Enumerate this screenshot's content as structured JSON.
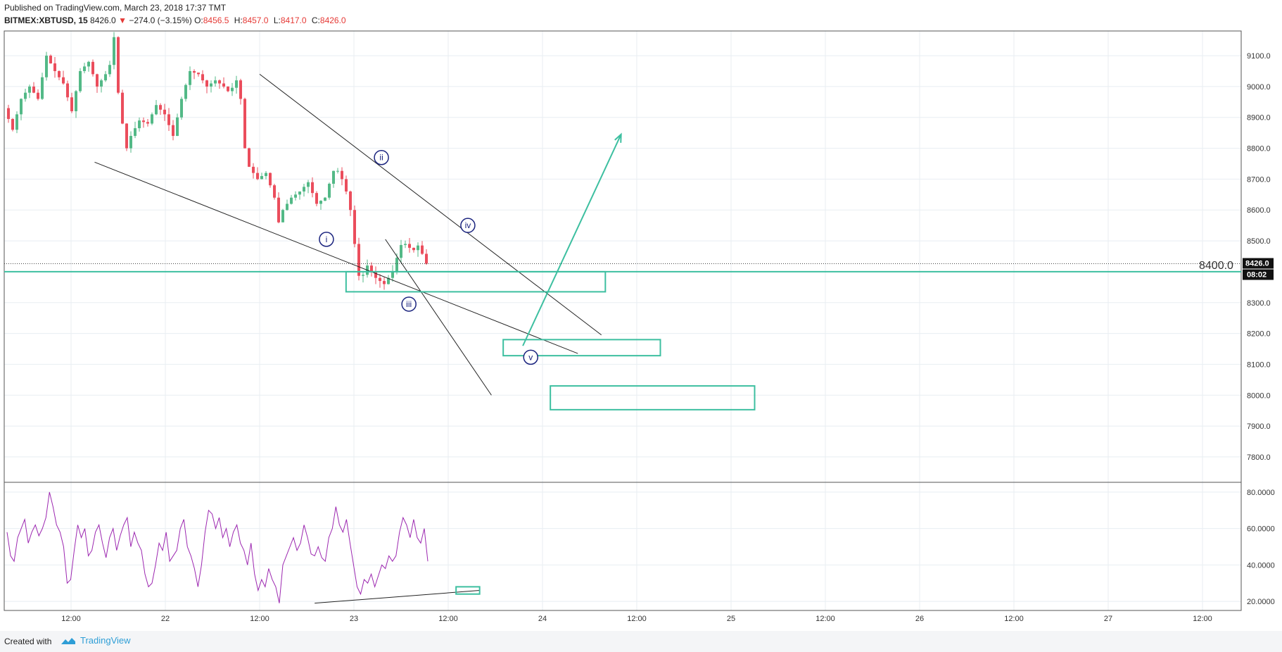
{
  "header": {
    "published": "Published on TradingView.com, March 23, 2018 17:37 TMT",
    "symbol": "BITMEX:XBTUSD, 15",
    "last": "8426.0",
    "change": "−274.0 (−3.15%)",
    "o_label": "O:",
    "o_value": "8456.5",
    "h_label": "H:",
    "h_value": "8457.0",
    "l_label": "L:",
    "l_value": "8417.0",
    "c_label": "C:",
    "c_value": "8426.0"
  },
  "footer": {
    "created": "Created with",
    "brand": "TradingView"
  },
  "colors": {
    "up": "#53b987",
    "down": "#eb4d5c",
    "teal": "#3dbfa0",
    "rsi": "#9c27b0",
    "wave_label": "#1a237e",
    "grid": "#e8eef2"
  },
  "chart_data": [
    {
      "type": "candlestick",
      "title": "BITMEX:XBTUSD, 15",
      "ylim": [
        7720,
        9180
      ],
      "y_ticks": [
        "9100.0",
        "9000.0",
        "8900.0",
        "8800.0",
        "8700.0",
        "8600.0",
        "8500.0",
        "8400.0",
        "8300.0",
        "8200.0",
        "8100.0",
        "8000.0",
        "7900.0",
        "7800.0"
      ],
      "x_ticks": [
        "12:00",
        "22",
        "12:00",
        "23",
        "12:00",
        "24",
        "12:00",
        "25",
        "12:00",
        "26",
        "12:00",
        "27",
        "12:00"
      ],
      "last_price_label": "8426.0",
      "countdown_label": "08:02",
      "horizontal_line": {
        "value": 8400,
        "label": "8400.0"
      },
      "price_path": [
        [
          0,
          8930
        ],
        [
          12,
          8860
        ],
        [
          24,
          8960
        ],
        [
          36,
          9000
        ],
        [
          48,
          8960
        ],
        [
          60,
          9100
        ],
        [
          72,
          9050
        ],
        [
          84,
          9010
        ],
        [
          96,
          8920
        ],
        [
          108,
          9050
        ],
        [
          120,
          9080
        ],
        [
          132,
          9000
        ],
        [
          144,
          9040
        ],
        [
          154,
          9090
        ],
        [
          156,
          9160
        ],
        [
          162,
          8980
        ],
        [
          168,
          8880
        ],
        [
          174,
          8800
        ],
        [
          180,
          8840
        ],
        [
          192,
          8890
        ],
        [
          204,
          8880
        ],
        [
          216,
          8940
        ],
        [
          228,
          8910
        ],
        [
          240,
          8840
        ],
        [
          252,
          8960
        ],
        [
          264,
          9050
        ],
        [
          276,
          9040
        ],
        [
          288,
          9000
        ],
        [
          300,
          9020
        ],
        [
          312,
          9000
        ],
        [
          320,
          8980
        ],
        [
          330,
          9020
        ],
        [
          336,
          8960
        ],
        [
          342,
          8800
        ],
        [
          348,
          8740
        ],
        [
          360,
          8700
        ],
        [
          372,
          8720
        ],
        [
          384,
          8640
        ],
        [
          390,
          8560
        ],
        [
          396,
          8600
        ],
        [
          408,
          8640
        ],
        [
          420,
          8660
        ],
        [
          432,
          8690
        ],
        [
          444,
          8620
        ],
        [
          456,
          8640
        ],
        [
          464,
          8700
        ],
        [
          470,
          8740
        ],
        [
          476,
          8720
        ],
        [
          484,
          8680
        ],
        [
          490,
          8620
        ],
        [
          496,
          8560
        ],
        [
          500,
          8420
        ],
        [
          506,
          8370
        ],
        [
          516,
          8420
        ],
        [
          528,
          8380
        ],
        [
          540,
          8360
        ],
        [
          552,
          8400
        ],
        [
          560,
          8460
        ],
        [
          566,
          8500
        ],
        [
          574,
          8480
        ],
        [
          582,
          8470
        ],
        [
          590,
          8490
        ],
        [
          598,
          8426
        ]
      ],
      "candle_step": 6,
      "trend_lines": [
        {
          "from": [
            "21 15:00",
            8755
          ],
          "to": [
            "24 04:30",
            8135
          ]
        },
        {
          "from": [
            "22 12:00",
            9040
          ],
          "to": [
            "24 07:30",
            8195
          ]
        },
        {
          "from": [
            "23 04:00",
            8505
          ],
          "to": [
            "23 17:30",
            8000
          ]
        }
      ],
      "zones": [
        {
          "x_from": "22 23:00",
          "x_to": "24 08:00",
          "y_top": 8400,
          "y_bottom": 8335
        },
        {
          "x_from": "23 19:00",
          "x_to": "24 15:00",
          "y_top": 8180,
          "y_bottom": 8128
        },
        {
          "x_from": "24 01:00",
          "x_to": "25 03:00",
          "y_top": 8030,
          "y_bottom": 7953
        }
      ],
      "projection_arrow": {
        "from": [
          "23 21:30",
          8160
        ],
        "to": [
          "24 10:00",
          8845
        ]
      },
      "wave_labels": [
        {
          "text": "i",
          "price": 8505
        },
        {
          "text": "ii",
          "price": 8770
        },
        {
          "text": "iii",
          "price": 8295
        },
        {
          "text": "iv",
          "price": 8550
        },
        {
          "text": "v",
          "price": 8123
        }
      ]
    },
    {
      "type": "line",
      "title": "",
      "ylim": [
        15,
        85
      ],
      "y_ticks": [
        "80.0000",
        "60.0000",
        "40.0000",
        "20.0000"
      ],
      "series": [
        {
          "values": [
            58,
            45,
            42,
            55,
            60,
            65,
            52,
            58,
            62,
            56,
            60,
            66,
            80,
            72,
            62,
            58,
            50,
            30,
            32,
            48,
            62,
            55,
            60,
            45,
            48,
            58,
            62,
            52,
            44,
            55,
            60,
            48,
            56,
            62,
            66,
            50,
            58,
            52,
            48,
            35,
            28,
            30,
            40,
            52,
            48,
            58,
            42,
            45,
            48,
            60,
            65,
            50,
            45,
            38,
            28,
            40,
            58,
            70,
            68,
            60,
            66,
            55,
            60,
            50,
            58,
            62,
            52,
            48,
            40,
            52,
            35,
            26,
            32,
            28,
            38,
            32,
            28,
            19,
            40,
            45,
            50,
            55,
            48,
            52,
            62,
            55,
            46,
            45,
            50,
            44,
            42,
            55,
            60,
            72,
            62,
            58,
            65,
            52,
            40,
            28,
            24,
            32,
            30,
            35,
            28,
            34,
            40,
            38,
            45,
            42,
            45,
            58,
            66,
            62,
            55,
            65,
            55,
            52,
            60,
            42
          ]
        }
      ],
      "trend_line": {
        "from_value": 19,
        "to_value": 26
      },
      "zone": {
        "y_top": 28,
        "y_bottom": 24
      }
    }
  ]
}
